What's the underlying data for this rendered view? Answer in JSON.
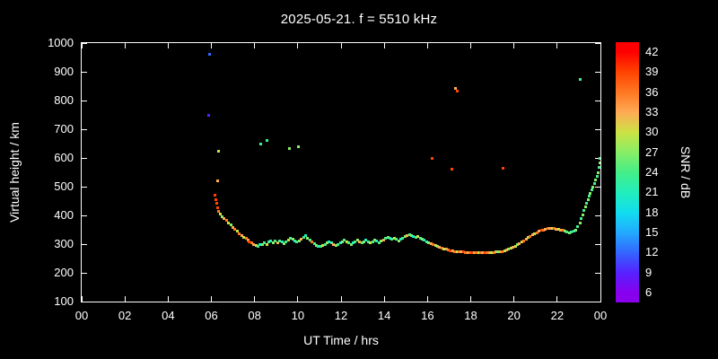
{
  "title": "2025-05-21. f = 5510 kHz",
  "chart_data": {
    "type": "scatter",
    "title": "2025-05-21. f = 5510 kHz",
    "xlabel": "UT Time / hrs",
    "ylabel": "Virtual height / km",
    "xlim": [
      0,
      24
    ],
    "ylim": [
      100,
      1000
    ],
    "background": "#000000",
    "axis_color": "#ffffff",
    "grid": false,
    "x_ticks": {
      "values": [
        0,
        2,
        4,
        6,
        8,
        10,
        12,
        14,
        16,
        18,
        20,
        22,
        24
      ],
      "labels": [
        "00",
        "02",
        "04",
        "06",
        "08",
        "10",
        "12",
        "14",
        "16",
        "18",
        "20",
        "22",
        "00"
      ]
    },
    "y_ticks": {
      "values": [
        100,
        200,
        300,
        400,
        500,
        600,
        700,
        800,
        900,
        1000
      ],
      "labels": [
        "100",
        "200",
        "300",
        "400",
        "500",
        "600",
        "700",
        "800",
        "900",
        "1000"
      ]
    },
    "colorbar": {
      "label": "SNR / dB",
      "min": 4.5,
      "max": 43.5,
      "ticks": [
        6,
        9,
        12,
        15,
        18,
        21,
        24,
        27,
        30,
        33,
        36,
        39,
        42
      ],
      "colors": [
        "#8800ee",
        "#5522ff",
        "#3366ff",
        "#22aaff",
        "#11ddee",
        "#22eebb",
        "#44ee88",
        "#88ee66",
        "#cce244",
        "#ffaa55",
        "#ff7722",
        "#ff4400",
        "#ff0000"
      ]
    },
    "points": [
      [
        5.88,
        750,
        9
      ],
      [
        5.92,
        960,
        12
      ],
      [
        6.27,
        520,
        33
      ],
      [
        6.33,
        622,
        30
      ],
      [
        6.17,
        470,
        39
      ],
      [
        6.22,
        456,
        39
      ],
      [
        6.26,
        441,
        39
      ],
      [
        6.29,
        426,
        38
      ],
      [
        6.34,
        414,
        36
      ],
      [
        6.42,
        404,
        30
      ],
      [
        6.5,
        396,
        27
      ],
      [
        6.6,
        389,
        33
      ],
      [
        6.7,
        382,
        36
      ],
      [
        6.8,
        374,
        30
      ],
      [
        6.9,
        367,
        27
      ],
      [
        7.0,
        359,
        33
      ],
      [
        7.1,
        351,
        36
      ],
      [
        7.2,
        344,
        30
      ],
      [
        7.3,
        337,
        36
      ],
      [
        7.4,
        331,
        33
      ],
      [
        7.5,
        325,
        30
      ],
      [
        7.6,
        319,
        36
      ],
      [
        7.7,
        314,
        33
      ],
      [
        7.76,
        309,
        39
      ],
      [
        7.86,
        304,
        36
      ],
      [
        7.96,
        299,
        33
      ],
      [
        8.06,
        295,
        30
      ],
      [
        8.16,
        293,
        24
      ],
      [
        8.26,
        299,
        21
      ],
      [
        8.36,
        297,
        27
      ],
      [
        8.46,
        304,
        24
      ],
      [
        8.56,
        300,
        30
      ],
      [
        8.66,
        307,
        24
      ],
      [
        8.76,
        311,
        21
      ],
      [
        8.86,
        306,
        27
      ],
      [
        8.96,
        310,
        24
      ],
      [
        9.06,
        305,
        33
      ],
      [
        9.16,
        311,
        24
      ],
      [
        9.26,
        307,
        21
      ],
      [
        9.36,
        303,
        27
      ],
      [
        9.46,
        309,
        24
      ],
      [
        9.56,
        315,
        30
      ],
      [
        9.66,
        321,
        24
      ],
      [
        9.76,
        317,
        27
      ],
      [
        9.86,
        311,
        21
      ],
      [
        9.96,
        307,
        24
      ],
      [
        10.06,
        311,
        27
      ],
      [
        10.16,
        317,
        33
      ],
      [
        10.26,
        323,
        24
      ],
      [
        10.36,
        329,
        21
      ],
      [
        10.46,
        321,
        27
      ],
      [
        10.56,
        313,
        24
      ],
      [
        10.66,
        307,
        36
      ],
      [
        10.76,
        301,
        24
      ],
      [
        10.86,
        296,
        27
      ],
      [
        10.96,
        293,
        21
      ],
      [
        11.06,
        291,
        24
      ],
      [
        11.16,
        295,
        30
      ],
      [
        11.26,
        299,
        24
      ],
      [
        11.36,
        304,
        27
      ],
      [
        11.46,
        309,
        21
      ],
      [
        11.56,
        305,
        24
      ],
      [
        11.66,
        299,
        33
      ],
      [
        11.76,
        295,
        27
      ],
      [
        11.86,
        299,
        24
      ],
      [
        11.96,
        305,
        21
      ],
      [
        12.06,
        309,
        27
      ],
      [
        12.16,
        313,
        24
      ],
      [
        12.26,
        309,
        30
      ],
      [
        12.36,
        304,
        24
      ],
      [
        12.46,
        299,
        27
      ],
      [
        12.56,
        304,
        21
      ],
      [
        12.66,
        309,
        24
      ],
      [
        12.76,
        313,
        27
      ],
      [
        12.86,
        309,
        33
      ],
      [
        12.96,
        305,
        24
      ],
      [
        13.06,
        309,
        27
      ],
      [
        13.16,
        313,
        21
      ],
      [
        13.26,
        309,
        24
      ],
      [
        13.36,
        305,
        30
      ],
      [
        13.46,
        309,
        24
      ],
      [
        13.56,
        314,
        27
      ],
      [
        13.66,
        310,
        21
      ],
      [
        13.76,
        306,
        24
      ],
      [
        13.86,
        310,
        27
      ],
      [
        13.96,
        315,
        33
      ],
      [
        14.06,
        319,
        24
      ],
      [
        14.16,
        324,
        27
      ],
      [
        14.26,
        320,
        21
      ],
      [
        14.36,
        316,
        24
      ],
      [
        14.46,
        320,
        30
      ],
      [
        14.56,
        316,
        24
      ],
      [
        14.66,
        312,
        27
      ],
      [
        14.76,
        317,
        21
      ],
      [
        14.86,
        321,
        24
      ],
      [
        14.96,
        326,
        27
      ],
      [
        15.06,
        330,
        33
      ],
      [
        15.16,
        334,
        24
      ],
      [
        15.26,
        330,
        27
      ],
      [
        15.36,
        326,
        21
      ],
      [
        15.46,
        322,
        24
      ],
      [
        15.56,
        326,
        30
      ],
      [
        15.66,
        321,
        24
      ],
      [
        15.76,
        317,
        27
      ],
      [
        15.86,
        313,
        21
      ],
      [
        15.96,
        309,
        24
      ],
      [
        16.06,
        306,
        27
      ],
      [
        16.16,
        303,
        33
      ],
      [
        16.26,
        299,
        36
      ],
      [
        16.36,
        296,
        30
      ],
      [
        16.46,
        293,
        27
      ],
      [
        16.56,
        290,
        33
      ],
      [
        16.66,
        287,
        36
      ],
      [
        16.76,
        284,
        30
      ],
      [
        16.86,
        282,
        33
      ],
      [
        16.96,
        280,
        36
      ],
      [
        17.06,
        278,
        39
      ],
      [
        17.16,
        276,
        33
      ],
      [
        17.26,
        275,
        36
      ],
      [
        17.36,
        274,
        30
      ],
      [
        17.46,
        273,
        36
      ],
      [
        17.56,
        272,
        33
      ],
      [
        17.66,
        272,
        39
      ],
      [
        17.76,
        271,
        36
      ],
      [
        17.86,
        271,
        33
      ],
      [
        17.96,
        271,
        36
      ],
      [
        18.06,
        270,
        39
      ],
      [
        18.16,
        270,
        33
      ],
      [
        18.26,
        269,
        36
      ],
      [
        18.36,
        269,
        30
      ],
      [
        18.46,
        269,
        36
      ],
      [
        18.56,
        269,
        33
      ],
      [
        18.66,
        269,
        39
      ],
      [
        18.76,
        270,
        36
      ],
      [
        18.86,
        270,
        33
      ],
      [
        18.96,
        271,
        30
      ],
      [
        19.06,
        271,
        36
      ],
      [
        19.16,
        272,
        33
      ],
      [
        19.26,
        273,
        27
      ],
      [
        19.36,
        274,
        33
      ],
      [
        19.46,
        275,
        36
      ],
      [
        19.56,
        277,
        30
      ],
      [
        19.66,
        279,
        33
      ],
      [
        19.76,
        282,
        27
      ],
      [
        19.86,
        285,
        30
      ],
      [
        19.96,
        289,
        33
      ],
      [
        20.06,
        293,
        30
      ],
      [
        20.16,
        297,
        27
      ],
      [
        20.26,
        302,
        33
      ],
      [
        20.36,
        307,
        30
      ],
      [
        20.46,
        312,
        36
      ],
      [
        20.56,
        317,
        33
      ],
      [
        20.66,
        322,
        30
      ],
      [
        20.76,
        327,
        36
      ],
      [
        20.86,
        332,
        33
      ],
      [
        20.96,
        336,
        30
      ],
      [
        21.06,
        340,
        36
      ],
      [
        21.16,
        344,
        33
      ],
      [
        21.26,
        347,
        39
      ],
      [
        21.36,
        350,
        36
      ],
      [
        21.46,
        352,
        33
      ],
      [
        21.56,
        354,
        36
      ],
      [
        21.66,
        355,
        33
      ],
      [
        21.76,
        355,
        30
      ],
      [
        21.86,
        354,
        36
      ],
      [
        21.96,
        353,
        33
      ],
      [
        22.06,
        351,
        30
      ],
      [
        22.16,
        349,
        33
      ],
      [
        22.26,
        347,
        36
      ],
      [
        22.36,
        345,
        27
      ],
      [
        22.46,
        342,
        24
      ],
      [
        22.56,
        340,
        27
      ],
      [
        22.66,
        341,
        24
      ],
      [
        22.76,
        344,
        21
      ],
      [
        22.86,
        350,
        27
      ],
      [
        22.96,
        360,
        24
      ],
      [
        23.06,
        374,
        27
      ],
      [
        23.12,
        388,
        24
      ],
      [
        23.18,
        402,
        27
      ],
      [
        23.24,
        416,
        24
      ],
      [
        23.3,
        430,
        27
      ],
      [
        23.36,
        443,
        24
      ],
      [
        23.42,
        455,
        27
      ],
      [
        23.48,
        467,
        24
      ],
      [
        23.54,
        478,
        27
      ],
      [
        23.6,
        489,
        24
      ],
      [
        23.66,
        500,
        27
      ],
      [
        23.72,
        511,
        24
      ],
      [
        23.78,
        523,
        27
      ],
      [
        23.84,
        536,
        24
      ],
      [
        23.9,
        550,
        27
      ],
      [
        23.94,
        566,
        24
      ],
      [
        23.97,
        583,
        27
      ],
      [
        23.99,
        598,
        24
      ],
      [
        8.3,
        650,
        24
      ],
      [
        8.56,
        662,
        24
      ],
      [
        9.6,
        632,
        27
      ],
      [
        10.04,
        640,
        27
      ],
      [
        16.2,
        600,
        39
      ],
      [
        17.12,
        560,
        39
      ],
      [
        17.3,
        842,
        33
      ],
      [
        17.38,
        832,
        39
      ],
      [
        19.5,
        565,
        39
      ],
      [
        23.05,
        875,
        24
      ]
    ]
  }
}
